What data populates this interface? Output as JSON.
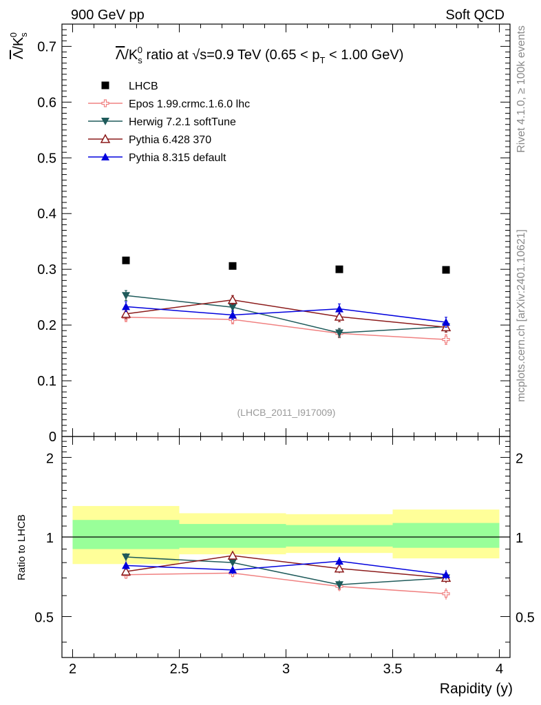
{
  "header": {
    "left": "900 GeV pp",
    "right": "Soft QCD",
    "side_top": "Rivet 4.1.0, ≥ 100k events",
    "side_bottom": "mcplots.cern.ch [arXiv:2401.10621]"
  },
  "chart_data": {
    "type": "scatter",
    "title": {
      "lambda": "Λ",
      "sep": "/K",
      "sub": "s",
      "sup": "0",
      "ratio_text": " ratio at ",
      "sqrt": "√s",
      "energy": "=0.9 TeV (0.65 < p",
      "pt_sub": "T",
      "range_end": " < 1.00 GeV)"
    },
    "ylabel": {
      "lambda": "Λ",
      "sep": "/K",
      "sub": "s",
      "sup": "0"
    },
    "ratio_ylabel": "Ratio to LHCB",
    "xlabel": "Rapidity (y)",
    "analysis_id": "(LHCB_2011_I917009)",
    "xlim": [
      1.95,
      4.05
    ],
    "ylim": [
      0,
      0.74
    ],
    "ratio_ylim": [
      0.35,
      2.4
    ],
    "x_ticks": [
      "2",
      "2.5",
      "3",
      "3.5",
      "4"
    ],
    "x_tick_values": [
      2,
      2.5,
      3,
      3.5,
      4
    ],
    "y_ticks": [
      "0",
      "0.1",
      "0.2",
      "0.3",
      "0.4",
      "0.5",
      "0.6",
      "0.7"
    ],
    "y_tick_values": [
      0,
      0.1,
      0.2,
      0.3,
      0.4,
      0.5,
      0.6,
      0.7
    ],
    "ratio_ticks": [
      "0.5",
      "1",
      "2"
    ],
    "ratio_tick_values": [
      0.5,
      1,
      2
    ],
    "bins": [
      [
        2.0,
        2.5
      ],
      [
        2.5,
        3.0
      ],
      [
        3.0,
        3.5
      ],
      [
        3.5,
        4.0
      ]
    ],
    "x": [
      2.25,
      2.75,
      3.25,
      3.75
    ],
    "data": {
      "name": "LHCB",
      "values": [
        0.316,
        0.306,
        0.3,
        0.299
      ],
      "band_inner": [
        [
          0.9,
          1.16
        ],
        [
          0.91,
          1.12
        ],
        [
          0.92,
          1.11
        ],
        [
          0.91,
          1.13
        ]
      ],
      "band_outer": [
        [
          0.79,
          1.31
        ],
        [
          0.86,
          1.23
        ],
        [
          0.87,
          1.22
        ],
        [
          0.83,
          1.27
        ]
      ]
    },
    "series": [
      {
        "name": "Epos 1.99.crmc.1.6.0 lhc",
        "color": "#f08080",
        "marker": "open-cross",
        "values": [
          0.214,
          0.21,
          0.185,
          0.174
        ],
        "errors": [
          0.008,
          0.008,
          0.008,
          0.009
        ],
        "ratio": [
          0.72,
          0.73,
          0.65,
          0.61
        ]
      },
      {
        "name": "Herwig 7.2.1 softTune",
        "color": "#1e5a5a",
        "marker": "triangle-down",
        "values": [
          0.253,
          0.232,
          0.186,
          0.197
        ],
        "errors": [
          0.009,
          0.008,
          0.008,
          0.008
        ],
        "ratio": [
          0.84,
          0.8,
          0.66,
          0.7
        ]
      },
      {
        "name": "Pythia 6.428 370",
        "color": "#8b1a1a",
        "marker": "open-triangle-up",
        "values": [
          0.22,
          0.245,
          0.215,
          0.196
        ],
        "errors": [
          0.009,
          0.008,
          0.009,
          0.009
        ],
        "ratio": [
          0.74,
          0.85,
          0.76,
          0.7
        ]
      },
      {
        "name": "Pythia 8.315 default",
        "color": "#0000dd",
        "marker": "triangle-up",
        "values": [
          0.233,
          0.218,
          0.229,
          0.205
        ],
        "errors": [
          0.009,
          0.008,
          0.009,
          0.009
        ],
        "ratio": [
          0.78,
          0.75,
          0.81,
          0.72
        ]
      }
    ]
  }
}
